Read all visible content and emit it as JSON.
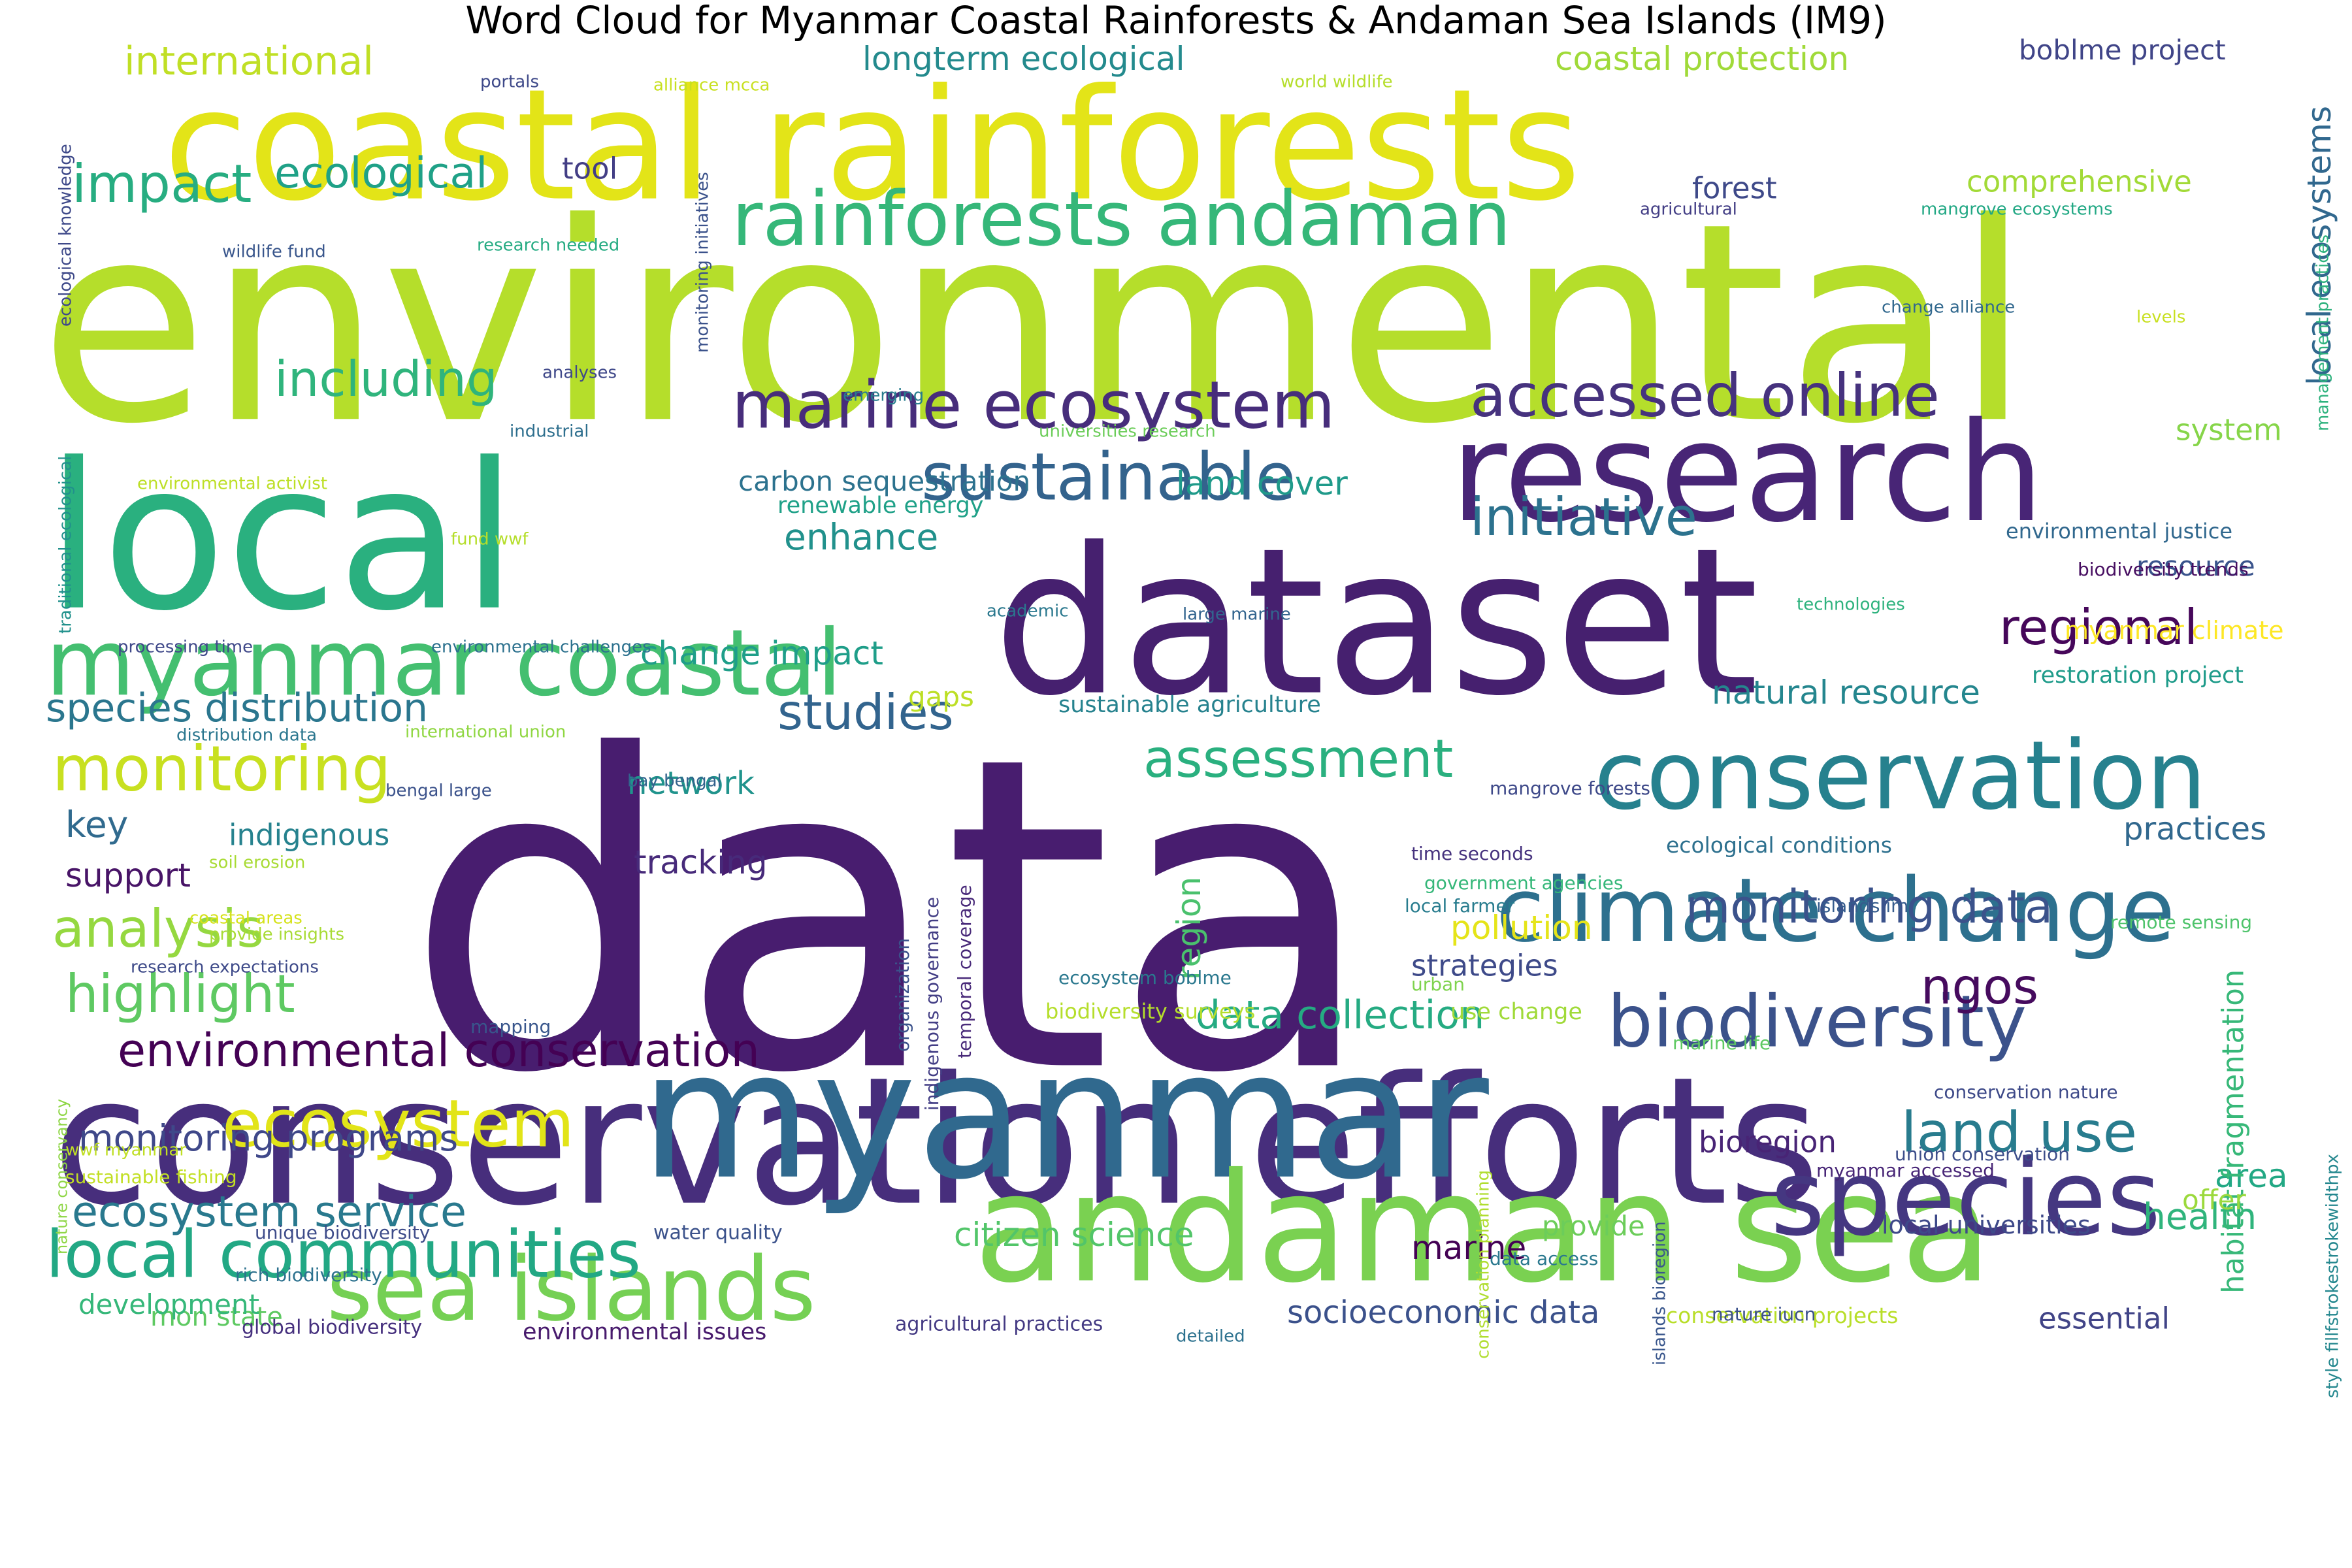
{
  "title": "Word Cloud for Myanmar Coastal Rainforests & Andaman Sea Islands (IM9)",
  "palette": "viridis",
  "words": [
    {
      "text": "data",
      "color": "#481d6f"
    },
    {
      "text": "environmental",
      "color": "#b5de2b"
    },
    {
      "text": "dataset",
      "color": "#46206f"
    },
    {
      "text": "local",
      "color": "#2ab07f"
    },
    {
      "text": "coastal rainforests",
      "color": "#e3e418"
    },
    {
      "text": "conservation efforts",
      "color": "#472e7c"
    },
    {
      "text": "myanmar",
      "color": "#30698e"
    },
    {
      "text": "research",
      "color": "#482576"
    },
    {
      "text": "andaman sea",
      "color": "#7ad151"
    },
    {
      "text": "species",
      "color": "#453781"
    },
    {
      "text": "conservation",
      "color": "#26818e"
    },
    {
      "text": "climate change",
      "color": "#2d708e"
    },
    {
      "text": "biodiversity",
      "color": "#3b528b"
    },
    {
      "text": "myanmar coastal",
      "color": "#44bf70"
    },
    {
      "text": "sea islands",
      "color": "#75d054"
    },
    {
      "text": "rainforests andaman",
      "color": "#35b779"
    },
    {
      "text": "local communities",
      "color": "#22a884"
    },
    {
      "text": "marine ecosystem",
      "color": "#472d7b"
    },
    {
      "text": "sustainable",
      "color": "#33638d"
    },
    {
      "text": "ecosystem",
      "color": "#e2e418"
    },
    {
      "text": "accessed online",
      "color": "#46327e"
    },
    {
      "text": "monitoring",
      "color": "#c8e020"
    },
    {
      "text": "initiative",
      "color": "#2c728e"
    },
    {
      "text": "environmental conservation",
      "color": "#440154"
    },
    {
      "text": "analysis",
      "color": "#95d840"
    },
    {
      "text": "highlight",
      "color": "#5ec962"
    },
    {
      "text": "assessment",
      "color": "#2ab07f"
    },
    {
      "text": "land use",
      "color": "#287c8e"
    },
    {
      "text": "ecosystem service",
      "color": "#29798e"
    },
    {
      "text": "regional",
      "color": "#46075a"
    },
    {
      "text": "studies",
      "color": "#32648e"
    },
    {
      "text": "monitoring data",
      "color": "#3b528b"
    },
    {
      "text": "data collection",
      "color": "#25ab82"
    },
    {
      "text": "ngos",
      "color": "#460b5e"
    },
    {
      "text": "impact",
      "color": "#27ad81"
    },
    {
      "text": "including",
      "color": "#2fb47c"
    },
    {
      "text": "ecological",
      "color": "#1fa187"
    },
    {
      "text": "species distribution",
      "color": "#2a768e"
    },
    {
      "text": "international",
      "color": "#c0df25"
    },
    {
      "text": "longterm ecological",
      "color": "#238a8d"
    },
    {
      "text": "coastal protection",
      "color": "#a0da39"
    },
    {
      "text": "monitoring programs",
      "color": "#3f4889"
    },
    {
      "text": "citizen science",
      "color": "#52c569"
    },
    {
      "text": "natural resource",
      "color": "#24868e"
    },
    {
      "text": "health",
      "color": "#2fb47c"
    },
    {
      "text": "enhance",
      "color": "#21918c"
    },
    {
      "text": "carbon sequestration",
      "color": "#2c728e"
    },
    {
      "text": "land cover",
      "color": "#1f9a8a"
    },
    {
      "text": "change impact",
      "color": "#1f9e89"
    },
    {
      "text": "bioregion",
      "color": "#482475"
    },
    {
      "text": "marine",
      "color": "#440154"
    },
    {
      "text": "area",
      "color": "#22a884"
    },
    {
      "text": "local ecosystems",
      "color": "#31688e"
    },
    {
      "text": "boblme project",
      "color": "#404588"
    },
    {
      "text": "forest",
      "color": "#3e4989"
    },
    {
      "text": "comprehensive",
      "color": "#a2da37"
    },
    {
      "text": "pollution",
      "color": "#e5e419"
    },
    {
      "text": "habitat fragmentation",
      "color": "#37b878"
    },
    {
      "text": "key",
      "color": "#306a8e"
    },
    {
      "text": "indigenous",
      "color": "#26828e"
    },
    {
      "text": "support",
      "color": "#481467"
    },
    {
      "text": "tracking",
      "color": "#472a7a"
    },
    {
      "text": "network",
      "color": "#20938c"
    },
    {
      "text": "practices",
      "color": "#31688e"
    },
    {
      "text": "resource",
      "color": "#3a548c"
    },
    {
      "text": "system",
      "color": "#86d549"
    },
    {
      "text": "strategies",
      "color": "#3e4a89"
    },
    {
      "text": "region",
      "color": "#4ac16d"
    },
    {
      "text": "socioeconomic data",
      "color": "#3b518b"
    },
    {
      "text": "mon state",
      "color": "#5ec962"
    },
    {
      "text": "development",
      "color": "#35b779"
    },
    {
      "text": "essential",
      "color": "#414487"
    },
    {
      "text": "tool",
      "color": "#433e85"
    },
    {
      "text": "provide",
      "color": "#6ccd5a"
    },
    {
      "text": "offer",
      "color": "#9bd93c"
    },
    {
      "text": "gaps",
      "color": "#bddf26"
    },
    {
      "text": "local universities",
      "color": "#3e4989"
    },
    {
      "text": "myanmar climate",
      "color": "#fde725"
    },
    {
      "text": "restoration project",
      "color": "#1e9b8a"
    },
    {
      "text": "environmental justice",
      "color": "#31688e"
    },
    {
      "text": "biodiversity trends",
      "color": "#470e61"
    },
    {
      "text": "sustainable agriculture",
      "color": "#26828e"
    },
    {
      "text": "use change",
      "color": "#a0da39"
    },
    {
      "text": "renewable energy",
      "color": "#1fa188"
    },
    {
      "text": "ecological conditions",
      "color": "#2d708e"
    },
    {
      "text": "conservation projects",
      "color": "#b8de29"
    },
    {
      "text": "environmental issues",
      "color": "#481b6d"
    },
    {
      "text": "agricultural practices",
      "color": "#443a83"
    },
    {
      "text": "global biodiversity",
      "color": "#46307e"
    },
    {
      "text": "water quality",
      "color": "#3b528b"
    },
    {
      "text": "unique biodiversity",
      "color": "#3e4c8a"
    },
    {
      "text": "rich biodiversity",
      "color": "#2c718e"
    },
    {
      "text": "sustainable fishing",
      "color": "#c2df23"
    },
    {
      "text": "wwf myanmar",
      "color": "#c0df25"
    },
    {
      "text": "nature conservancy",
      "color": "#8ed645"
    },
    {
      "text": "conservation planning",
      "color": "#b0dd2f"
    },
    {
      "text": "islands bioregion",
      "color": "#39568c"
    },
    {
      "text": "conservation nature",
      "color": "#3e4a89"
    },
    {
      "text": "union conservation",
      "color": "#3d4e8a"
    },
    {
      "text": "myanmar accessed",
      "color": "#482677"
    },
    {
      "text": "nature iucn",
      "color": "#3b518b"
    },
    {
      "text": "data access",
      "color": "#2a788e"
    },
    {
      "text": "marine life",
      "color": "#5ec962"
    },
    {
      "text": "style fillfstrokestrokewidthpx",
      "color": "#24878e"
    },
    {
      "text": "remote sensing",
      "color": "#4ec36b"
    },
    {
      "text": "urban",
      "color": "#7fd34e"
    },
    {
      "text": "biodiversity surveys",
      "color": "#b5de2b"
    },
    {
      "text": "organization",
      "color": "#3b528b"
    },
    {
      "text": "indigenous governance",
      "color": "#433e85"
    },
    {
      "text": "temporal coverage",
      "color": "#482979"
    },
    {
      "text": "mapping",
      "color": "#39568c"
    },
    {
      "text": "ecosystem boblme",
      "color": "#2a788e"
    },
    {
      "text": "time seconds",
      "color": "#46327e"
    },
    {
      "text": "government agencies",
      "color": "#35b779"
    },
    {
      "text": "local farmer",
      "color": "#287c8e"
    },
    {
      "text": "islands im",
      "color": "#365c8d"
    },
    {
      "text": "mangrove forests",
      "color": "#3e4989"
    },
    {
      "text": "coastal areas",
      "color": "#d5e21a"
    },
    {
      "text": "provide insights",
      "color": "#a8db34"
    },
    {
      "text": "research expectations",
      "color": "#3e4a89"
    },
    {
      "text": "soil erosion",
      "color": "#a8db34"
    },
    {
      "text": "bengal large",
      "color": "#3b528b"
    },
    {
      "text": "bay bengal",
      "color": "#33638d"
    },
    {
      "text": "distribution data",
      "color": "#2a768e"
    },
    {
      "text": "international union",
      "color": "#90d743"
    },
    {
      "text": "processing time",
      "color": "#3f4889"
    },
    {
      "text": "environmental challenges",
      "color": "#2c718e"
    },
    {
      "text": "academic",
      "color": "#2a788e"
    },
    {
      "text": "large marine",
      "color": "#32648e"
    },
    {
      "text": "technologies",
      "color": "#2db27d"
    },
    {
      "text": "fund wwf",
      "color": "#b5de2b"
    },
    {
      "text": "environmental activist",
      "color": "#bddf26"
    },
    {
      "text": "traditional ecological",
      "color": "#21918c"
    },
    {
      "text": "ecological knowledge",
      "color": "#3e4989"
    },
    {
      "text": "industrial",
      "color": "#2e6f8e"
    },
    {
      "text": "analyses",
      "color": "#3f4889"
    },
    {
      "text": "emerging",
      "color": "#287d8e"
    },
    {
      "text": "universities research",
      "color": "#6ccd5a"
    },
    {
      "text": "monitoring initiatives",
      "color": "#3b528b"
    },
    {
      "text": "wildlife fund",
      "color": "#39568c"
    },
    {
      "text": "research needed",
      "color": "#25ab82"
    },
    {
      "text": "portals",
      "color": "#3e4989"
    },
    {
      "text": "alliance mcca",
      "color": "#c8e020"
    },
    {
      "text": "world wildlife",
      "color": "#b5de2b"
    },
    {
      "text": "agricultural",
      "color": "#433e85"
    },
    {
      "text": "mangrove ecosystems",
      "color": "#22a884"
    },
    {
      "text": "change alliance",
      "color": "#31688e"
    },
    {
      "text": "levels",
      "color": "#c8e020"
    },
    {
      "text": "management practices",
      "color": "#2db27d"
    },
    {
      "text": "detailed",
      "color": "#2c718e"
    }
  ]
}
